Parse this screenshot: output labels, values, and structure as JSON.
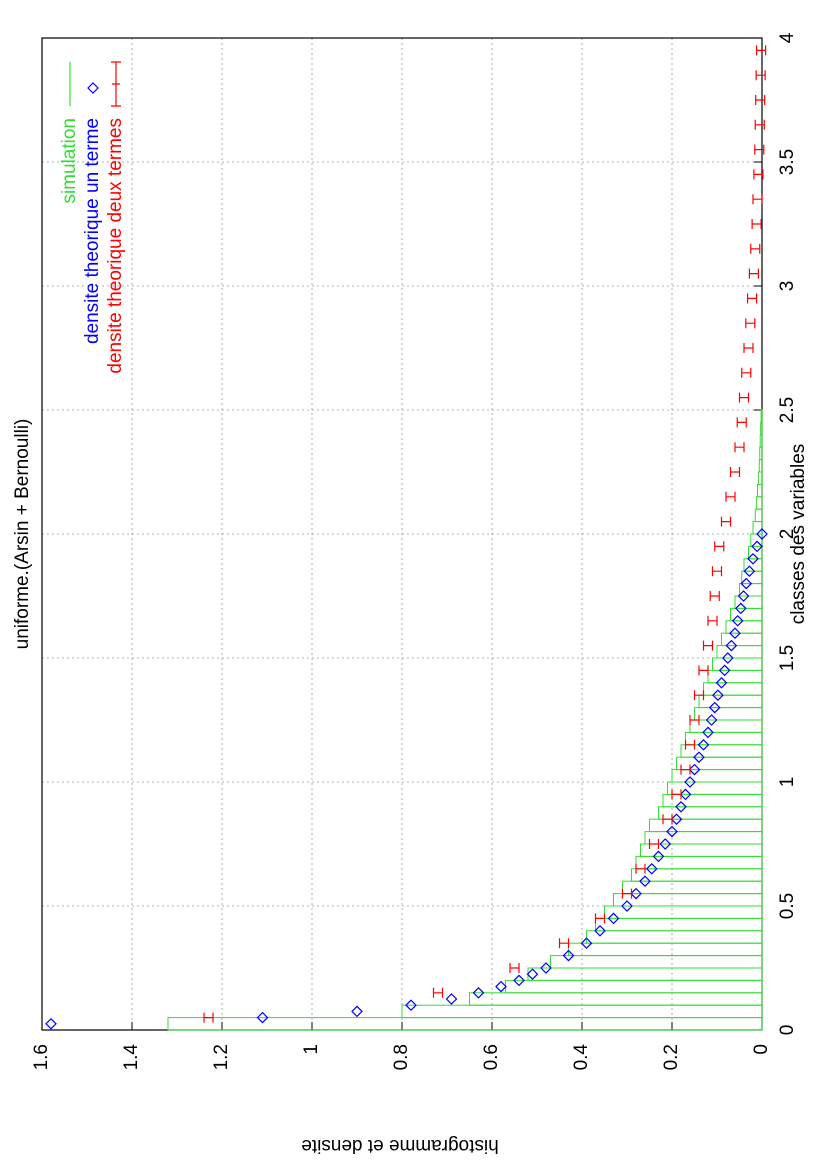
{
  "chart_data": {
    "type": "histogram",
    "title": "uniforme.(Arsin + Bernoulli)",
    "xlabel": "classes des variables",
    "ylabel": "histogramme et densite",
    "xlim": [
      0,
      4
    ],
    "ylim": [
      0,
      1.6
    ],
    "xticks": [
      0,
      0.5,
      1,
      1.5,
      2,
      2.5,
      3,
      3.5,
      4
    ],
    "yticks": [
      0,
      0.2,
      0.4,
      0.6,
      0.8,
      1,
      1.2,
      1.4,
      1.6
    ],
    "grid": true,
    "legend": "top-right",
    "histogram": {
      "name": "simulation",
      "color": "#33dd33",
      "bins": [
        0,
        0.05,
        0.1,
        0.15,
        0.2,
        0.25,
        0.3,
        0.35,
        0.4,
        0.45,
        0.5,
        0.55,
        0.6,
        0.65,
        0.7,
        0.75,
        0.8,
        0.85,
        0.9,
        0.95,
        1,
        1.05,
        1.1,
        1.15,
        1.2,
        1.25,
        1.3,
        1.35,
        1.4,
        1.45,
        1.5,
        1.55,
        1.6,
        1.65,
        1.7,
        1.75,
        1.8,
        1.85,
        1.9,
        1.95,
        2,
        2.05,
        2.1,
        2.15,
        2.2,
        2.25,
        2.3,
        2.35,
        2.4,
        2.45,
        2.5
      ],
      "values": [
        1.32,
        0.8,
        0.65,
        0.57,
        0.52,
        0.47,
        0.43,
        0.39,
        0.37,
        0.35,
        0.33,
        0.31,
        0.29,
        0.28,
        0.27,
        0.26,
        0.25,
        0.23,
        0.22,
        0.21,
        0.2,
        0.19,
        0.18,
        0.17,
        0.16,
        0.15,
        0.14,
        0.13,
        0.12,
        0.11,
        0.1,
        0.09,
        0.08,
        0.07,
        0.06,
        0.05,
        0.045,
        0.04,
        0.03,
        0.025,
        0.02,
        0.015,
        0.012,
        0.01,
        0.008,
        0.006,
        0.005,
        0.004,
        0.003,
        0.002
      ]
    },
    "series": [
      {
        "name": "densite theorique un terme",
        "color": "#0000ff",
        "marker": "diamond",
        "x": [
          0.025,
          0.05,
          0.075,
          0.1,
          0.125,
          0.15,
          0.175,
          0.2,
          0.225,
          0.25,
          0.3,
          0.35,
          0.4,
          0.45,
          0.5,
          0.55,
          0.6,
          0.65,
          0.7,
          0.75,
          0.8,
          0.85,
          0.9,
          0.95,
          1,
          1.05,
          1.1,
          1.15,
          1.2,
          1.25,
          1.3,
          1.35,
          1.4,
          1.45,
          1.5,
          1.55,
          1.6,
          1.65,
          1.7,
          1.75,
          1.8,
          1.85,
          1.9,
          1.95,
          2
        ],
        "values": [
          1.58,
          1.11,
          0.9,
          0.78,
          0.69,
          0.63,
          0.58,
          0.54,
          0.51,
          0.48,
          0.43,
          0.39,
          0.36,
          0.33,
          0.3,
          0.28,
          0.26,
          0.245,
          0.23,
          0.215,
          0.2,
          0.19,
          0.18,
          0.17,
          0.16,
          0.15,
          0.14,
          0.13,
          0.12,
          0.112,
          0.105,
          0.098,
          0.09,
          0.083,
          0.076,
          0.068,
          0.06,
          0.054,
          0.047,
          0.041,
          0.035,
          0.028,
          0.02,
          0.011,
          0
        ]
      },
      {
        "name": "densite theorique deux termes",
        "color": "#ff0000",
        "marker": "errorbar",
        "x": [
          0.05,
          0.15,
          0.25,
          0.35,
          0.45,
          0.55,
          0.65,
          0.75,
          0.85,
          0.95,
          1.05,
          1.15,
          1.25,
          1.35,
          1.45,
          1.55,
          1.65,
          1.75,
          1.85,
          1.95,
          2.05,
          2.15,
          2.25,
          2.35,
          2.45,
          2.55,
          2.65,
          2.75,
          2.85,
          2.95,
          3.05,
          3.15,
          3.25,
          3.35,
          3.45,
          3.55,
          3.65,
          3.75,
          3.85,
          3.95
        ],
        "values": [
          1.23,
          0.72,
          0.55,
          0.44,
          0.36,
          0.3,
          0.27,
          0.24,
          0.21,
          0.19,
          0.17,
          0.16,
          0.15,
          0.14,
          0.13,
          0.12,
          0.11,
          0.105,
          0.1,
          0.095,
          0.08,
          0.07,
          0.06,
          0.05,
          0.045,
          0.04,
          0.035,
          0.03,
          0.026,
          0.022,
          0.018,
          0.015,
          0.012,
          0.01,
          0.008,
          0.006,
          0.005,
          0.004,
          0.003,
          0.002
        ],
        "errors": [
          0.01,
          0.01,
          0.01,
          0.01,
          0.01,
          0.01,
          0.01,
          0.01,
          0.01,
          0.01,
          0.01,
          0.01,
          0.01,
          0.01,
          0.01,
          0.01,
          0.01,
          0.01,
          0.01,
          0.01,
          0.01,
          0.01,
          0.01,
          0.01,
          0.01,
          0.01,
          0.01,
          0.01,
          0.01,
          0.01,
          0.01,
          0.01,
          0.01,
          0.01,
          0.01,
          0.01,
          0.01,
          0.01,
          0.01,
          0.01
        ]
      }
    ]
  }
}
